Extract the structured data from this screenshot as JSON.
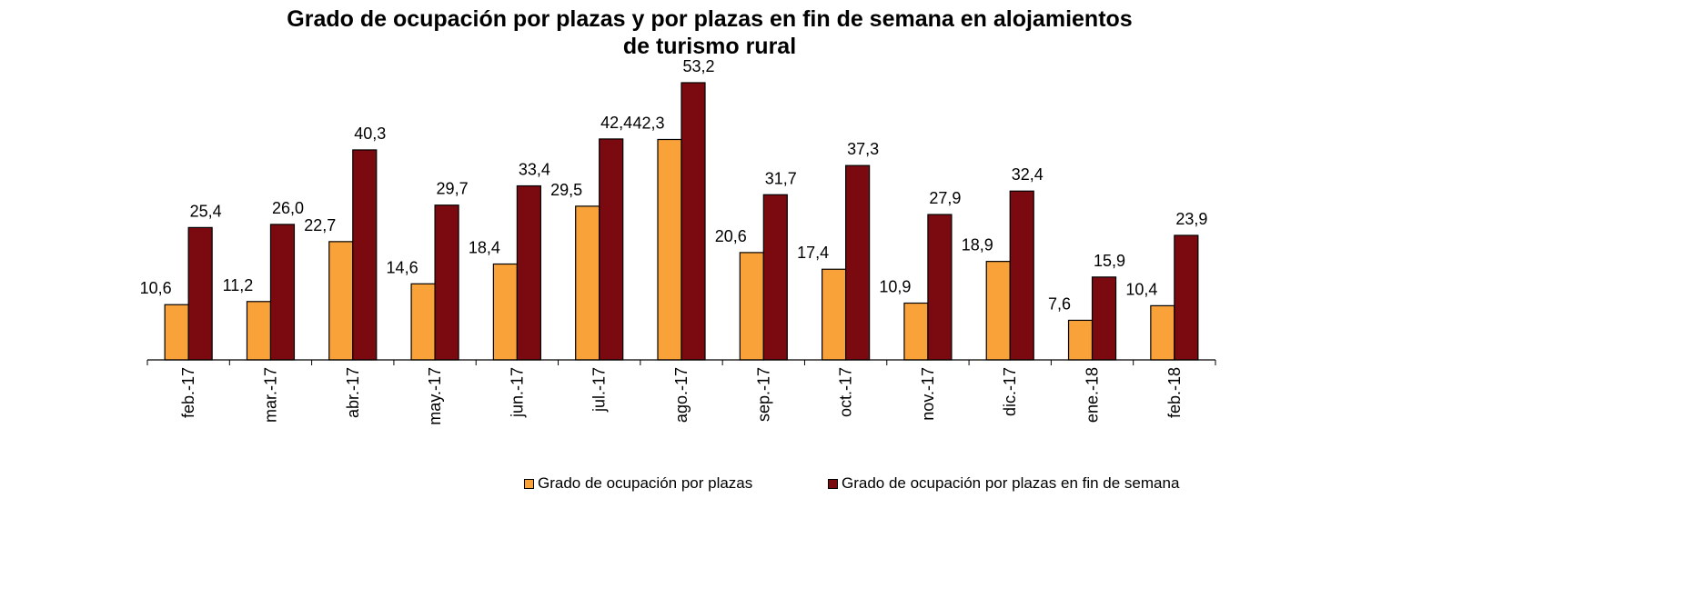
{
  "chart_data": {
    "type": "bar",
    "title_lines": [
      "Grado de ocupación por plazas y por plazas en fin de semana en alojamientos",
      "de turismo rural"
    ],
    "categories": [
      "feb.-17",
      "mar.-17",
      "abr.-17",
      "may.-17",
      "jun.-17",
      "jul.-17",
      "ago.-17",
      "sep.-17",
      "oct.-17",
      "nov.-17",
      "dic.-17",
      "ene.-18",
      "feb.-18"
    ],
    "series": [
      {
        "name": "Grado de ocupación por plazas",
        "color": "#F9A23A",
        "values": [
          10.6,
          11.2,
          22.7,
          14.6,
          18.4,
          29.5,
          42.3,
          20.6,
          17.4,
          10.9,
          18.9,
          7.6,
          10.4
        ],
        "labels": [
          "10,6",
          "11,2",
          "22,7",
          "14,6",
          "18,4",
          "29,5",
          "42,3",
          "20,6",
          "17,4",
          "10,9",
          "18,9",
          "7,6",
          "10,4"
        ]
      },
      {
        "name": "Grado de ocupación por plazas en fin de semana",
        "color": "#7B0A10",
        "values": [
          25.4,
          26.0,
          40.3,
          29.7,
          33.4,
          42.4,
          53.2,
          31.7,
          37.3,
          27.9,
          32.4,
          15.9,
          23.9
        ],
        "labels": [
          "25,4",
          "26,0",
          "40,3",
          "29,7",
          "33,4",
          "42,4",
          "53,2",
          "31,7",
          "37,3",
          "27,9",
          "32,4",
          "15,9",
          "23,9"
        ]
      }
    ],
    "ylim": [
      0,
      53.2
    ],
    "grid": false,
    "legend_position": "bottom"
  }
}
